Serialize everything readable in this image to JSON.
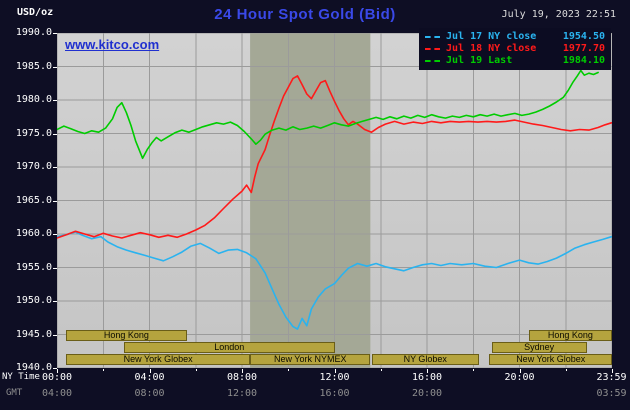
{
  "header": {
    "unit": "USD/oz",
    "datetime": "July 19, 2023 22:51"
  },
  "watermark": "www.kitco.com",
  "chart_data": {
    "type": "line",
    "title": "24 Hour Spot Gold (Bid)",
    "ylabel": "USD/oz",
    "xlabel_primary": "NY Time",
    "xlabel_secondary": "GMT",
    "xlim": [
      0,
      24
    ],
    "ylim": [
      1940,
      1990
    ],
    "x_grid_step": 2,
    "y_grid_step": 5,
    "grid": true,
    "legend_position": "top-right",
    "y_ticks": [
      1990,
      1985,
      1980,
      1975,
      1970,
      1965,
      1960,
      1955,
      1950,
      1945,
      1940
    ],
    "x_ticks": [
      {
        "h": 0,
        "ny": "00:00",
        "gmt": "04:00"
      },
      {
        "h": 4,
        "ny": "04:00",
        "gmt": "08:00"
      },
      {
        "h": 8,
        "ny": "08:00",
        "gmt": "12:00"
      },
      {
        "h": 12,
        "ny": "12:00",
        "gmt": "16:00"
      },
      {
        "h": 16,
        "ny": "16:00",
        "gmt": "20:00"
      },
      {
        "h": 20,
        "ny": "20:00",
        "gmt": null
      },
      {
        "h": 23.98,
        "ny": "23:59",
        "gmt": "03:59"
      }
    ],
    "legend": [
      {
        "label": "Jul 17 NY close",
        "value": "1954.50",
        "color": "#2ab3ef"
      },
      {
        "label": "Jul 18 NY close",
        "value": "1977.70",
        "color": "#ff1a1a"
      },
      {
        "label": "Jul 19 Last",
        "value": "1984.10",
        "color": "#00cc00"
      }
    ],
    "nymex_band": {
      "start": 8.35,
      "end": 13.55
    },
    "sessions": [
      {
        "row": 0,
        "label": "Hong Kong",
        "start": 0.4,
        "end": 5.6
      },
      {
        "row": 0,
        "label": "Hong Kong",
        "start": 20.4,
        "end": 24
      },
      {
        "row": 1,
        "label": "London",
        "start": 2.9,
        "end": 12.0
      },
      {
        "row": 1,
        "label": "Sydney",
        "start": 18.8,
        "end": 22.9
      },
      {
        "row": 2,
        "label": "New York Globex",
        "start": 0.4,
        "end": 8.35
      },
      {
        "row": 2,
        "label": "New York NYMEX",
        "start": 8.35,
        "end": 13.55
      },
      {
        "row": 2,
        "label": "NY Globex",
        "start": 13.6,
        "end": 18.25
      },
      {
        "row": 2,
        "label": "New York Globex",
        "start": 18.7,
        "end": 24
      }
    ],
    "colors": {
      "band": "#a4a896",
      "grid": "#9b9b9b",
      "plot_bg": "#cbcbcb",
      "background": "#0e0e24"
    },
    "series": [
      {
        "name": "Jul 17",
        "color": "#2ab3ef",
        "points": [
          [
            0,
            1959.6
          ],
          [
            0.4,
            1959.9
          ],
          [
            0.8,
            1960.3
          ],
          [
            1.1,
            1959.8
          ],
          [
            1.5,
            1959.3
          ],
          [
            1.9,
            1959.6
          ],
          [
            2.2,
            1958.8
          ],
          [
            2.6,
            1958.1
          ],
          [
            3,
            1957.6
          ],
          [
            3.4,
            1957.2
          ],
          [
            3.8,
            1956.8
          ],
          [
            4.2,
            1956.4
          ],
          [
            4.6,
            1956
          ],
          [
            5,
            1956.6
          ],
          [
            5.4,
            1957.3
          ],
          [
            5.8,
            1958.2
          ],
          [
            6.2,
            1958.6
          ],
          [
            6.6,
            1957.9
          ],
          [
            7,
            1957.1
          ],
          [
            7.4,
            1957.6
          ],
          [
            7.8,
            1957.7
          ],
          [
            8.2,
            1957.2
          ],
          [
            8.6,
            1956.3
          ],
          [
            9,
            1954.2
          ],
          [
            9.3,
            1951.8
          ],
          [
            9.6,
            1949.5
          ],
          [
            9.9,
            1947.6
          ],
          [
            10.2,
            1946.2
          ],
          [
            10.4,
            1945.8
          ],
          [
            10.6,
            1947.4
          ],
          [
            10.8,
            1946.3
          ],
          [
            11,
            1948.8
          ],
          [
            11.3,
            1950.6
          ],
          [
            11.6,
            1951.8
          ],
          [
            12,
            1952.6
          ],
          [
            12.3,
            1953.8
          ],
          [
            12.6,
            1954.9
          ],
          [
            13,
            1955.6
          ],
          [
            13.4,
            1955.2
          ],
          [
            13.8,
            1955.6
          ],
          [
            14.2,
            1955.1
          ],
          [
            14.6,
            1954.8
          ],
          [
            15,
            1954.5
          ],
          [
            15.4,
            1955
          ],
          [
            15.8,
            1955.4
          ],
          [
            16.2,
            1955.6
          ],
          [
            16.6,
            1955.3
          ],
          [
            17,
            1955.6
          ],
          [
            17.5,
            1955.4
          ],
          [
            18,
            1955.6
          ],
          [
            18.5,
            1955.2
          ],
          [
            19,
            1955
          ],
          [
            19.5,
            1955.6
          ],
          [
            20,
            1956.1
          ],
          [
            20.4,
            1955.7
          ],
          [
            20.8,
            1955.5
          ],
          [
            21.2,
            1955.9
          ],
          [
            21.6,
            1956.4
          ],
          [
            22,
            1957.1
          ],
          [
            22.4,
            1957.9
          ],
          [
            22.8,
            1958.4
          ],
          [
            23.2,
            1958.8
          ],
          [
            23.6,
            1959.2
          ],
          [
            23.98,
            1959.6
          ]
        ]
      },
      {
        "name": "Jul 18",
        "color": "#ff1a1a",
        "points": [
          [
            0,
            1959.4
          ],
          [
            0.4,
            1959.9
          ],
          [
            0.8,
            1960.4
          ],
          [
            1.2,
            1960
          ],
          [
            1.6,
            1959.6
          ],
          [
            2,
            1960.1
          ],
          [
            2.4,
            1959.7
          ],
          [
            2.8,
            1959.4
          ],
          [
            3.2,
            1959.8
          ],
          [
            3.6,
            1960.2
          ],
          [
            4,
            1959.9
          ],
          [
            4.4,
            1959.5
          ],
          [
            4.8,
            1959.8
          ],
          [
            5.2,
            1959.5
          ],
          [
            5.6,
            1960
          ],
          [
            6,
            1960.6
          ],
          [
            6.4,
            1961.3
          ],
          [
            6.8,
            1962.4
          ],
          [
            7.2,
            1963.8
          ],
          [
            7.6,
            1965.2
          ],
          [
            8,
            1966.4
          ],
          [
            8.2,
            1967.3
          ],
          [
            8.4,
            1966.2
          ],
          [
            8.55,
            1968.5
          ],
          [
            8.7,
            1970.5
          ],
          [
            9,
            1972.6
          ],
          [
            9.2,
            1974.8
          ],
          [
            9.4,
            1976.9
          ],
          [
            9.6,
            1978.8
          ],
          [
            9.8,
            1980.6
          ],
          [
            10,
            1981.9
          ],
          [
            10.2,
            1983.2
          ],
          [
            10.4,
            1983.6
          ],
          [
            10.6,
            1982.3
          ],
          [
            10.8,
            1980.9
          ],
          [
            11,
            1980.2
          ],
          [
            11.2,
            1981.4
          ],
          [
            11.4,
            1982.6
          ],
          [
            11.6,
            1982.9
          ],
          [
            11.8,
            1981.3
          ],
          [
            12,
            1979.8
          ],
          [
            12.2,
            1978.4
          ],
          [
            12.4,
            1977.2
          ],
          [
            12.6,
            1976.3
          ],
          [
            12.8,
            1976.8
          ],
          [
            13,
            1976.4
          ],
          [
            13.3,
            1975.6
          ],
          [
            13.6,
            1975.2
          ],
          [
            13.9,
            1975.9
          ],
          [
            14.2,
            1976.4
          ],
          [
            14.6,
            1976.8
          ],
          [
            15,
            1976.4
          ],
          [
            15.4,
            1976.7
          ],
          [
            15.8,
            1976.5
          ],
          [
            16.2,
            1976.8
          ],
          [
            16.6,
            1976.6
          ],
          [
            17,
            1976.8
          ],
          [
            17.4,
            1976.7
          ],
          [
            17.8,
            1976.8
          ],
          [
            18.2,
            1976.7
          ],
          [
            18.6,
            1976.8
          ],
          [
            19,
            1976.7
          ],
          [
            19.4,
            1976.8
          ],
          [
            19.8,
            1977
          ],
          [
            20.2,
            1976.7
          ],
          [
            20.6,
            1976.4
          ],
          [
            21,
            1976.2
          ],
          [
            21.4,
            1975.9
          ],
          [
            21.8,
            1975.6
          ],
          [
            22.2,
            1975.4
          ],
          [
            22.6,
            1975.6
          ],
          [
            23,
            1975.5
          ],
          [
            23.4,
            1975.9
          ],
          [
            23.7,
            1976.3
          ],
          [
            23.98,
            1976.6
          ]
        ]
      },
      {
        "name": "Jul 19",
        "color": "#00cc00",
        "points": [
          [
            0,
            1975.6
          ],
          [
            0.3,
            1976.1
          ],
          [
            0.6,
            1975.7
          ],
          [
            0.9,
            1975.3
          ],
          [
            1.2,
            1975
          ],
          [
            1.5,
            1975.4
          ],
          [
            1.8,
            1975.2
          ],
          [
            2.1,
            1975.8
          ],
          [
            2.4,
            1977.2
          ],
          [
            2.6,
            1978.9
          ],
          [
            2.8,
            1979.6
          ],
          [
            3,
            1978.1
          ],
          [
            3.2,
            1976.2
          ],
          [
            3.4,
            1973.9
          ],
          [
            3.7,
            1971.3
          ],
          [
            3.9,
            1972.6
          ],
          [
            4.1,
            1973.6
          ],
          [
            4.3,
            1974.4
          ],
          [
            4.5,
            1973.9
          ],
          [
            4.8,
            1974.5
          ],
          [
            5.1,
            1975.1
          ],
          [
            5.4,
            1975.5
          ],
          [
            5.7,
            1975.2
          ],
          [
            6,
            1975.6
          ],
          [
            6.3,
            1976
          ],
          [
            6.6,
            1976.3
          ],
          [
            6.9,
            1976.6
          ],
          [
            7.2,
            1976.4
          ],
          [
            7.5,
            1976.7
          ],
          [
            7.8,
            1976.2
          ],
          [
            8.1,
            1975.3
          ],
          [
            8.4,
            1974.2
          ],
          [
            8.6,
            1973.4
          ],
          [
            8.8,
            1974
          ],
          [
            9,
            1974.9
          ],
          [
            9.3,
            1975.5
          ],
          [
            9.6,
            1975.8
          ],
          [
            9.9,
            1975.5
          ],
          [
            10.2,
            1976
          ],
          [
            10.5,
            1975.6
          ],
          [
            10.8,
            1975.8
          ],
          [
            11.1,
            1976.1
          ],
          [
            11.4,
            1975.8
          ],
          [
            11.7,
            1976.2
          ],
          [
            12,
            1976.6
          ],
          [
            12.3,
            1976.3
          ],
          [
            12.6,
            1976.1
          ],
          [
            12.9,
            1976.5
          ],
          [
            13.2,
            1976.8
          ],
          [
            13.5,
            1977.1
          ],
          [
            13.8,
            1977.4
          ],
          [
            14.1,
            1977.1
          ],
          [
            14.4,
            1977.5
          ],
          [
            14.7,
            1977.2
          ],
          [
            15,
            1977.6
          ],
          [
            15.3,
            1977.3
          ],
          [
            15.6,
            1977.7
          ],
          [
            15.9,
            1977.4
          ],
          [
            16.2,
            1977.8
          ],
          [
            16.5,
            1977.5
          ],
          [
            16.8,
            1977.3
          ],
          [
            17.1,
            1977.6
          ],
          [
            17.4,
            1977.4
          ],
          [
            17.7,
            1977.7
          ],
          [
            18,
            1977.5
          ],
          [
            18.3,
            1977.8
          ],
          [
            18.6,
            1977.6
          ],
          [
            18.9,
            1977.9
          ],
          [
            19.2,
            1977.6
          ],
          [
            19.5,
            1977.8
          ],
          [
            19.8,
            1978
          ],
          [
            20.1,
            1977.7
          ],
          [
            20.4,
            1977.9
          ],
          [
            20.7,
            1978.2
          ],
          [
            21,
            1978.6
          ],
          [
            21.3,
            1979.1
          ],
          [
            21.6,
            1979.7
          ],
          [
            21.9,
            1980.4
          ],
          [
            22.1,
            1981.4
          ],
          [
            22.3,
            1982.6
          ],
          [
            22.5,
            1983.6
          ],
          [
            22.65,
            1984.4
          ],
          [
            22.8,
            1983.7
          ],
          [
            23,
            1984
          ],
          [
            23.2,
            1983.8
          ],
          [
            23.4,
            1984.1
          ]
        ]
      }
    ]
  }
}
